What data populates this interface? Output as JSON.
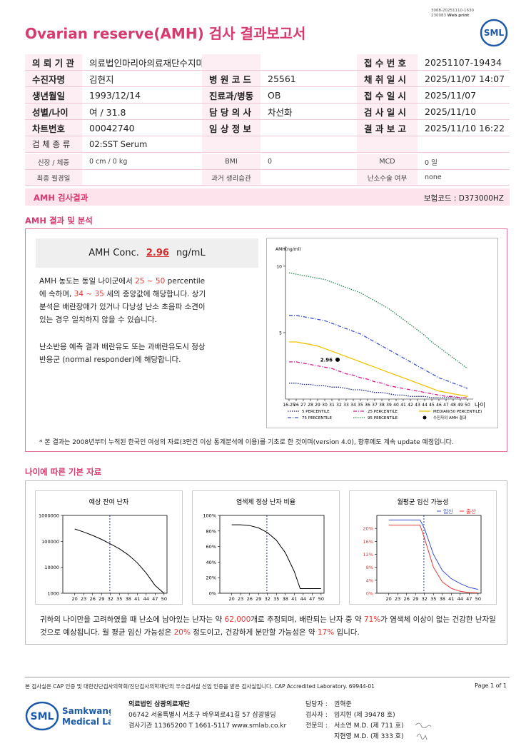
{
  "header": {
    "code_line1": "3068-20251110-1630",
    "code_line2": "230083",
    "web_print": "Web print",
    "title": "Ovarian reserve(AMH) 검사 결과보고서",
    "logo": "SML"
  },
  "info_table": {
    "rows": [
      {
        "left": {
          "label": "의 뢰 기 관",
          "value": "의료법인마리아의료재단수지마리아의원"
        },
        "right": {
          "label": "접 수 번 호",
          "value": "20251107-19434"
        }
      },
      {
        "left": {
          "label": "수진자명",
          "value": "김현지"
        },
        "middle": {
          "label": "병 원 코 드",
          "value": "25561"
        },
        "right": {
          "label": "채 취 일 시",
          "value": "2025/11/07 14:07"
        }
      },
      {
        "left": {
          "label": "생년월일",
          "value": "1993/12/14"
        },
        "middle": {
          "label": "진료과/병동",
          "value": "OB"
        },
        "right": {
          "label": "접 수 일 시",
          "value": "2025/11/07"
        }
      },
      {
        "left": {
          "label": "성별/나이",
          "value": "여 / 31.8"
        },
        "middle": {
          "label": "담 당 의 사",
          "value": "차선화"
        },
        "right": {
          "label": "검 사 일 시",
          "value": "2025/11/10"
        }
      },
      {
        "left": {
          "label": "차트번호",
          "value": "00042740"
        },
        "middle": {
          "label": "임 상 정 보"
        },
        "right": {
          "label": "결 과 보 고",
          "value": "2025/11/10 16:22"
        }
      },
      {
        "left": {
          "label": "검 체 종 류",
          "value": "02:SST Serum"
        }
      },
      {
        "left": {
          "label": "신장 / 체중",
          "value": "0 cm / 0 kg"
        },
        "middle": {
          "label": "BMI",
          "value": "0"
        },
        "right": {
          "label": "MCD",
          "value": "0 일"
        }
      },
      {
        "left": {
          "label": "최종 월경일"
        },
        "middle": {
          "label": "과거 생리습관"
        },
        "right": {
          "label": "난소수술 여부",
          "value": "none"
        }
      }
    ]
  },
  "result_bar": {
    "title": "AMH 검사결과",
    "insurance_code": "보험코드 : D373000HZ"
  },
  "analysis": {
    "section_title": "AMH 결과 및 분석",
    "conc_label": "AMH Conc.",
    "conc_value": "2.96",
    "conc_unit": "ng/mL",
    "paragraph1": [
      "AMH 농도는 동일 나이군에서 ",
      {
        "text": "25 ~ 50",
        "color": "#e53935"
      },
      " percentile에 속하며, ",
      {
        "text": "34 ~ 35",
        "color": "#e53935"
      },
      " 세의 중앙값에 해당합니다. 상기분석은 배란장애가 있거나 다낭성 난소 초음파 소견이 있는 경우 일치하지 않을 수 있습니다."
    ],
    "paragraph2": [
      "난소반응 예측 결과 배란유도 또는 과배란유도시 정상반응군 (normal responder)에 해당합니다."
    ],
    "note": "* 본 결과는 2008년부터 누적된 한국인 여성의 자료(3만건 이상 통계분석에 이용)를 기초로 한 것이며(version 4.0), 향후에도 계속 update 예정입니다.",
    "chart_data": {
      "type": "line",
      "y_label": "AMH(ng/ml)",
      "x_label": "나이",
      "legend": "bottom",
      "x": [
        25,
        26,
        27,
        28,
        29,
        30,
        31,
        32,
        33,
        34,
        35,
        36,
        37,
        38,
        39,
        40,
        41,
        42,
        43,
        44,
        45,
        46,
        47,
        48,
        49,
        50
      ],
      "xlim": [
        24.5,
        50.8
      ],
      "ylim": [
        0,
        11.5
      ],
      "xticks": [
        {
          "value": 25,
          "label": "16-25"
        },
        26,
        27,
        28,
        29,
        30,
        31,
        32,
        33,
        34,
        35,
        36,
        37,
        38,
        39,
        40,
        41,
        42,
        43,
        44,
        45,
        46,
        47,
        48,
        49,
        50
      ],
      "yticks": [
        5,
        10
      ],
      "series": [
        {
          "name": "5 PERCENTILE",
          "color": "#1f2a8a",
          "style": "dotted",
          "values": [
            1.2,
            1.2,
            1.1,
            1.1,
            1.0,
            1.0,
            0.9,
            0.9,
            0.8,
            0.7,
            0.7,
            0.6,
            0.5,
            0.5,
            0.4,
            0.3,
            0.3,
            0.2,
            0.2,
            0.2,
            0.1,
            0.1,
            0.1,
            0.1,
            0.1,
            0.1
          ]
        },
        {
          "name": "25 PERCENTILE",
          "color": "#d81b8c",
          "style": "dashdot",
          "values": [
            2.8,
            2.8,
            2.7,
            2.6,
            2.5,
            2.4,
            2.3,
            2.1,
            1.9,
            1.8,
            1.6,
            1.5,
            1.3,
            1.2,
            1.0,
            0.9,
            0.8,
            0.7,
            0.6,
            0.5,
            0.4,
            0.3,
            0.2,
            0.2,
            0.1,
            0.1
          ]
        },
        {
          "name": "MEDIAN(50 PERCENTILE)",
          "color": "#f2c300",
          "style": "solid",
          "values": [
            4.3,
            4.3,
            4.2,
            4.1,
            4.0,
            3.8,
            3.6,
            3.4,
            3.2,
            3.0,
            2.8,
            2.6,
            2.4,
            2.2,
            2.0,
            1.8,
            1.6,
            1.4,
            1.2,
            1.0,
            0.8,
            0.6,
            0.5,
            0.4,
            0.3,
            0.2
          ]
        },
        {
          "name": "75 PERCENTILE",
          "color": "#3a4fd0",
          "style": "dashdot",
          "values": [
            6.3,
            6.3,
            6.2,
            6.1,
            6.0,
            5.9,
            5.7,
            5.5,
            5.3,
            5.1,
            4.9,
            4.6,
            4.3,
            4.0,
            3.7,
            3.4,
            3.1,
            2.8,
            2.5,
            2.2,
            1.9,
            1.6,
            1.4,
            1.2,
            1.0,
            0.8
          ]
        },
        {
          "name": "95 PERCENTILE",
          "color": "#2e8b57",
          "style": "dotted",
          "values": [
            9.5,
            9.4,
            9.3,
            9.2,
            9.1,
            9.0,
            8.8,
            8.6,
            8.4,
            8.2,
            8.0,
            7.7,
            7.4,
            7.1,
            6.8,
            6.4,
            6.0,
            5.6,
            5.2,
            4.8,
            4.3,
            3.9,
            3.5,
            3.1,
            2.7,
            2.3
          ]
        }
      ],
      "point": {
        "name": "수진자의 AMH 결과",
        "color": "#000000",
        "x": 31.8,
        "y": 2.96
      }
    }
  },
  "age_data": {
    "section_title": "나이에 따른 기본 자료",
    "charts": [
      {
        "type": "line",
        "title": "예상 잔여 난자",
        "log_scale": true,
        "x": [
          20,
          23,
          26,
          29,
          32,
          35,
          38,
          41,
          44,
          47,
          50
        ],
        "xlim": [
          16,
          51
        ],
        "ylim": [
          1000,
          1000000
        ],
        "xticks": [
          20,
          23,
          26,
          29,
          32,
          35,
          38,
          41,
          44,
          47,
          50
        ],
        "yticks": [
          1000,
          10000,
          100000,
          1000000
        ],
        "marker_x": 31.8,
        "marker_color": "#2233aa",
        "series": [
          {
            "color": "#000000",
            "style": "solid",
            "values": [
              300000,
              230000,
              170000,
              120000,
              80000,
              52000,
              30000,
              15000,
              6000,
              2000,
              1000
            ]
          }
        ]
      },
      {
        "type": "line",
        "title": "염색체 정상 난자 비율",
        "x": [
          20,
          23,
          26,
          29,
          32,
          35,
          38,
          41,
          43,
          44,
          47,
          50
        ],
        "xlim": [
          16,
          51
        ],
        "ylim": [
          0,
          100
        ],
        "xticks": [
          20,
          23,
          26,
          29,
          32,
          35,
          38,
          41,
          44,
          47,
          50
        ],
        "yticks": [
          {
            "value": 0,
            "label": "0%"
          },
          {
            "value": 20,
            "label": "20%"
          },
          {
            "value": 40,
            "label": "40%"
          },
          {
            "value": 60,
            "label": "60%"
          },
          {
            "value": 80,
            "label": "80%"
          },
          {
            "value": 100,
            "label": "100%"
          }
        ],
        "marker_x": 31.8,
        "marker_color": "#2233aa",
        "series": [
          {
            "color": "#000000",
            "style": "solid",
            "values": [
              88,
              88,
              87,
              84,
              78,
              68,
              52,
              28,
              6,
              6,
              6,
              6
            ]
          }
        ]
      },
      {
        "type": "line",
        "title": "월평균 임신 가능성",
        "legend": "top-right",
        "tick_color": "#e53935",
        "x": [
          20,
          30.5,
          32,
          35,
          38,
          41,
          44,
          47,
          50
        ],
        "xlim": [
          16,
          51
        ],
        "ylim": [
          0,
          24
        ],
        "xticks": [
          20,
          23,
          26,
          29,
          32,
          35,
          38,
          41,
          44,
          47,
          50
        ],
        "yticks": [
          {
            "value": 0,
            "label": "0%"
          },
          {
            "value": 4,
            "label": "4%"
          },
          {
            "value": 8,
            "label": "8%"
          },
          {
            "value": 12,
            "label": "12%"
          },
          {
            "value": 16,
            "label": "16%"
          },
          {
            "value": 20,
            "label": "20%"
          }
        ],
        "marker_x": 31.8,
        "marker_color": "#2233aa",
        "series": [
          {
            "name": "임신",
            "color": "#3b4fd6",
            "style": "solid",
            "values": [
              22.6,
              22.6,
              20,
              12,
              7,
              4.5,
              3,
              1.8,
              1.2
            ]
          },
          {
            "name": "출산",
            "color": "#e53935",
            "style": "solid",
            "values": [
              21,
              21,
              17,
              8,
              3.5,
              1.5,
              0.6,
              0.2,
              0.1
            ]
          }
        ]
      }
    ],
    "conclusion": [
      "귀하의 나이만을 고려하였을 때 난소에 남아있는 난자는 약 ",
      {
        "text": "62,000",
        "color": "#e53935"
      },
      "개로 추정되며, 배란되는 난자 중 약 ",
      {
        "text": "71%",
        "color": "#e53935"
      },
      "가 염색체 이상이 없는 건강한 난자일 것으로 예상됩니다. 월 평균 임신 가능성은 ",
      {
        "text": "20%",
        "color": "#e53935"
      },
      " 정도이고, 건강하게 분만할 가능성은 약 ",
      {
        "text": "17%",
        "color": "#e53935"
      },
      " 입니다."
    ]
  },
  "footer": {
    "certification": "본 검사실은 CAP 인증 및 대한진단검사의학회/진단검사의학재단의 우수검사실 신임 인증을 받은 검사실입니다.  CAP Accredited Laboratory. 69944-01",
    "page": "Page 1 of 1",
    "logo": "SML",
    "logo_name_1": "Samkwang",
    "logo_name_2": "Medical Lab",
    "org_name": "의료법인 삼광의료재단",
    "address": "06742 서울특별시 서초구 바우뫼로41길 57 삼광빌딩",
    "contact": "검사기관 11365200  T 1661-5117  www.smlab.co.kr",
    "staff": [
      {
        "role": "담당자 :",
        "names": [
          "권혁준"
        ]
      },
      {
        "role": "검사자 :",
        "names": [
          "임지현 (제 39478 호)"
        ]
      },
      {
        "role": "전문의 :",
        "names": [
          "서소연 M.D. (제 711 호)",
          "지현영 M.D. (제 333 호)"
        ]
      }
    ]
  }
}
